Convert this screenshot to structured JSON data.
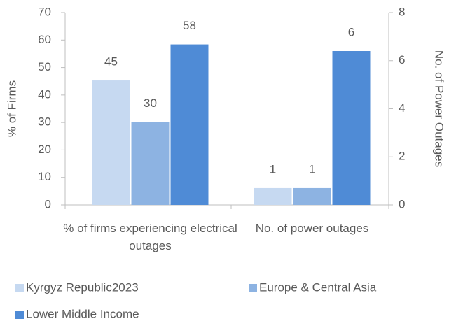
{
  "chart_data": {
    "type": "bar",
    "categories": [
      "% of firms experiencing electrical outages",
      "No. of power outages"
    ],
    "category_axes": [
      "y",
      "y2"
    ],
    "ylabel": "% of Firms",
    "y2label": "No. of Power Outages",
    "ylim": [
      0,
      70
    ],
    "yticks": [
      0,
      10,
      20,
      30,
      40,
      50,
      60,
      70
    ],
    "y2lim": [
      0,
      8
    ],
    "y2ticks": [
      0,
      2,
      4,
      6,
      8
    ],
    "series": [
      {
        "name": "Kyrgyz Republic2023",
        "color": "#c6d9f1",
        "values": [
          45.3,
          0.7
        ],
        "value_labels": [
          "45",
          "1"
        ]
      },
      {
        "name": "Europe & Central Asia",
        "color": "#8db3e2",
        "values": [
          30.2,
          0.7
        ],
        "value_labels": [
          "30",
          "1"
        ]
      },
      {
        "name": "Lower Middle Income",
        "color": "#4f8bd6",
        "values": [
          58.4,
          6.4
        ],
        "value_labels": [
          "58",
          "6"
        ]
      }
    ]
  }
}
